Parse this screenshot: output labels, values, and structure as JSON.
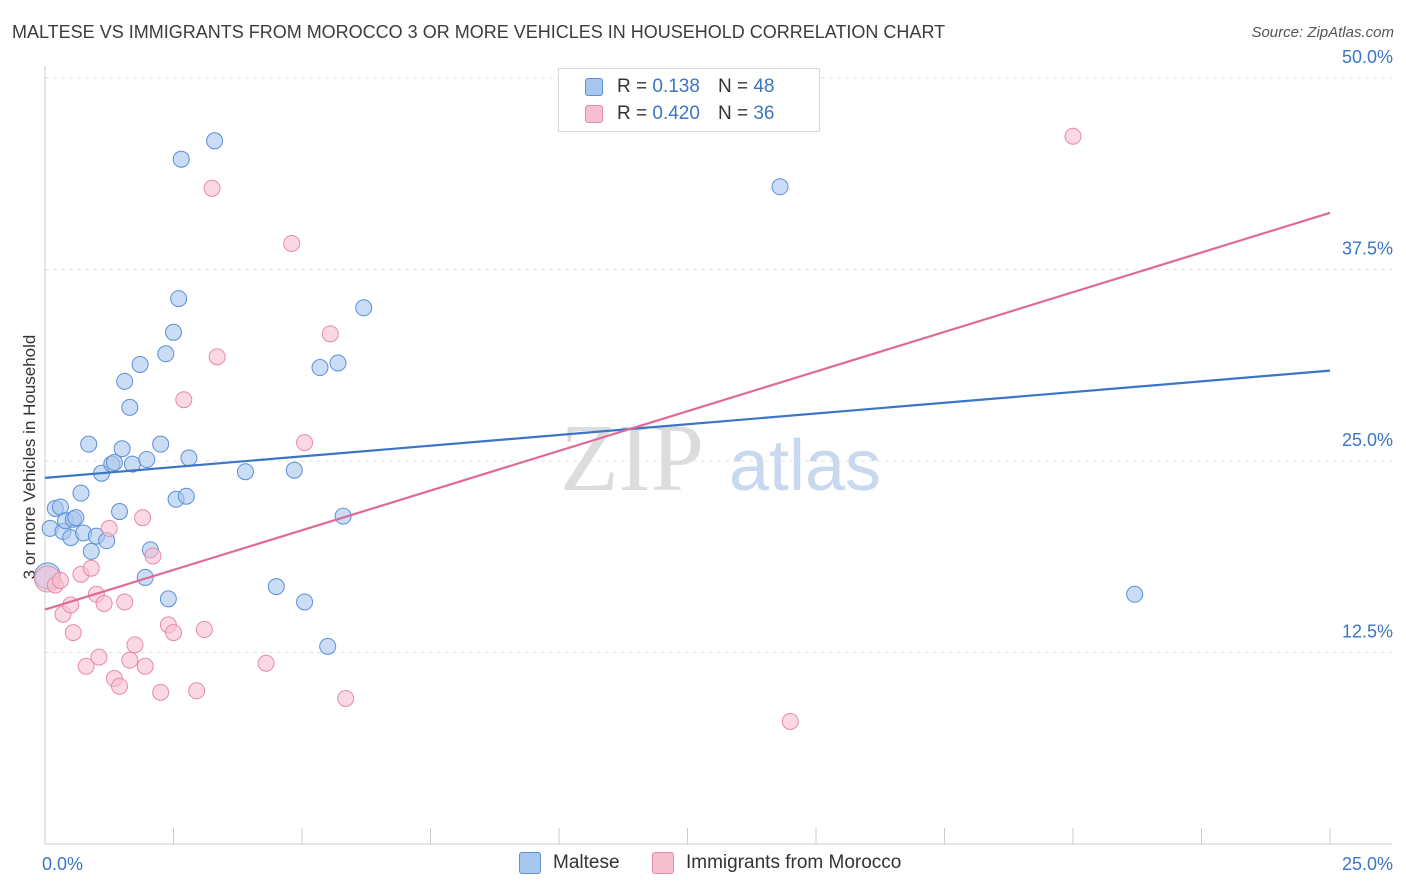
{
  "header": {
    "title": "MALTESE VS IMMIGRANTS FROM MOROCCO 3 OR MORE VEHICLES IN HOUSEHOLD CORRELATION CHART",
    "source": "Source: ZipAtlas.com"
  },
  "watermark": {
    "zip": "ZIP",
    "atlas": "atlas"
  },
  "legend": {
    "rows": [
      {
        "r_label": "R =",
        "r_value": "0.138",
        "n_label": "N =",
        "n_value": "48"
      },
      {
        "r_label": "R =",
        "r_value": "0.420",
        "n_label": "N =",
        "n_value": "36"
      }
    ]
  },
  "colors": {
    "maltese_fill": "#a9c6ef",
    "maltese_stroke": "#5b8fd6",
    "maltese_line": "#3a76c4",
    "morocco_fill": "#f6bfd0",
    "morocco_stroke": "#e88aa8",
    "morocco_line": "#e0699a",
    "grid": "#e2e2e2",
    "tick_text": "#3a76c4"
  },
  "chart_data": {
    "type": "scatter",
    "title": "MALTESE VS IMMIGRANTS FROM MOROCCO 3 OR MORE VEHICLES IN HOUSEHOLD CORRELATION CHART",
    "xlabel": "",
    "ylabel": "3 or more Vehicles in Household",
    "xlim": [
      0,
      25
    ],
    "ylim": [
      0,
      50
    ],
    "x_ticks": [
      0,
      2.5,
      5,
      7.5,
      10,
      12.5,
      15,
      17.5,
      20,
      22.5,
      25
    ],
    "x_tick_labels": [
      {
        "value": 0,
        "label": "0.0%"
      },
      {
        "value": 25,
        "label": "25.0%"
      }
    ],
    "y_tick_labels": [
      {
        "value": 12.5,
        "label": "12.5%"
      },
      {
        "value": 25,
        "label": "25.0%"
      },
      {
        "value": 37.5,
        "label": "37.5%"
      },
      {
        "value": 50,
        "label": "50.0%"
      }
    ],
    "grid": true,
    "legend_position": "top-center",
    "series": [
      {
        "name": "Maltese",
        "r": 0.138,
        "n": 48,
        "trend": {
          "x": [
            0,
            25
          ],
          "y": [
            23.9,
            30.9
          ]
        },
        "points": [
          {
            "x": 0.05,
            "y": 17.5,
            "big": true
          },
          {
            "x": 0.1,
            "y": 20.6
          },
          {
            "x": 0.2,
            "y": 21.9
          },
          {
            "x": 0.3,
            "y": 22.0
          },
          {
            "x": 0.35,
            "y": 20.4
          },
          {
            "x": 0.4,
            "y": 21.1
          },
          {
            "x": 0.5,
            "y": 20.0
          },
          {
            "x": 0.55,
            "y": 21.2
          },
          {
            "x": 0.6,
            "y": 21.3
          },
          {
            "x": 0.7,
            "y": 22.9
          },
          {
            "x": 0.75,
            "y": 20.3
          },
          {
            "x": 0.85,
            "y": 26.1
          },
          {
            "x": 0.9,
            "y": 19.1
          },
          {
            "x": 1.0,
            "y": 20.1
          },
          {
            "x": 1.1,
            "y": 24.2
          },
          {
            "x": 1.2,
            "y": 19.8
          },
          {
            "x": 1.3,
            "y": 24.8
          },
          {
            "x": 1.35,
            "y": 24.9
          },
          {
            "x": 1.45,
            "y": 21.7
          },
          {
            "x": 1.5,
            "y": 25.8
          },
          {
            "x": 1.55,
            "y": 30.2
          },
          {
            "x": 1.65,
            "y": 28.5
          },
          {
            "x": 1.7,
            "y": 24.8
          },
          {
            "x": 1.85,
            "y": 31.3
          },
          {
            "x": 1.95,
            "y": 17.4
          },
          {
            "x": 1.98,
            "y": 25.1
          },
          {
            "x": 2.05,
            "y": 19.2
          },
          {
            "x": 2.25,
            "y": 26.1
          },
          {
            "x": 2.35,
            "y": 32.0
          },
          {
            "x": 2.4,
            "y": 16.0
          },
          {
            "x": 2.5,
            "y": 33.4
          },
          {
            "x": 2.55,
            "y": 22.5
          },
          {
            "x": 2.6,
            "y": 35.6
          },
          {
            "x": 2.65,
            "y": 44.7
          },
          {
            "x": 2.75,
            "y": 22.7
          },
          {
            "x": 2.8,
            "y": 25.2
          },
          {
            "x": 3.3,
            "y": 45.9
          },
          {
            "x": 3.9,
            "y": 24.3
          },
          {
            "x": 4.5,
            "y": 16.8
          },
          {
            "x": 4.85,
            "y": 24.4
          },
          {
            "x": 5.05,
            "y": 15.8
          },
          {
            "x": 5.35,
            "y": 31.1
          },
          {
            "x": 5.5,
            "y": 12.9
          },
          {
            "x": 5.7,
            "y": 31.4
          },
          {
            "x": 5.8,
            "y": 21.4
          },
          {
            "x": 6.2,
            "y": 35.0
          },
          {
            "x": 14.3,
            "y": 42.9
          },
          {
            "x": 21.2,
            "y": 16.3
          }
        ]
      },
      {
        "name": "Immigrants from Morocco",
        "r": 0.42,
        "n": 36,
        "trend": {
          "x": [
            0,
            25
          ],
          "y": [
            15.3,
            41.2
          ]
        },
        "points": [
          {
            "x": 0.05,
            "y": 17.3,
            "big": true
          },
          {
            "x": 0.2,
            "y": 16.9
          },
          {
            "x": 0.3,
            "y": 17.2
          },
          {
            "x": 0.35,
            "y": 15.0
          },
          {
            "x": 0.5,
            "y": 15.6
          },
          {
            "x": 0.55,
            "y": 13.8
          },
          {
            "x": 0.7,
            "y": 17.6
          },
          {
            "x": 0.8,
            "y": 11.6
          },
          {
            "x": 0.9,
            "y": 18.0
          },
          {
            "x": 1.0,
            "y": 16.3
          },
          {
            "x": 1.05,
            "y": 12.2
          },
          {
            "x": 1.15,
            "y": 15.7
          },
          {
            "x": 1.25,
            "y": 20.6
          },
          {
            "x": 1.35,
            "y": 10.8
          },
          {
            "x": 1.45,
            "y": 10.3
          },
          {
            "x": 1.55,
            "y": 15.8
          },
          {
            "x": 1.65,
            "y": 12.0
          },
          {
            "x": 1.75,
            "y": 13.0
          },
          {
            "x": 1.9,
            "y": 21.3
          },
          {
            "x": 1.95,
            "y": 11.6
          },
          {
            "x": 2.1,
            "y": 18.8
          },
          {
            "x": 2.25,
            "y": 9.9
          },
          {
            "x": 2.4,
            "y": 14.3
          },
          {
            "x": 2.5,
            "y": 13.8
          },
          {
            "x": 2.7,
            "y": 29.0
          },
          {
            "x": 2.95,
            "y": 10.0
          },
          {
            "x": 3.1,
            "y": 14.0
          },
          {
            "x": 3.25,
            "y": 42.8
          },
          {
            "x": 3.35,
            "y": 31.8
          },
          {
            "x": 4.3,
            "y": 11.8
          },
          {
            "x": 4.8,
            "y": 39.2
          },
          {
            "x": 5.05,
            "y": 26.2
          },
          {
            "x": 5.55,
            "y": 33.3
          },
          {
            "x": 5.85,
            "y": 9.5
          },
          {
            "x": 14.5,
            "y": 8.0
          },
          {
            "x": 20.0,
            "y": 46.2
          }
        ]
      }
    ]
  }
}
